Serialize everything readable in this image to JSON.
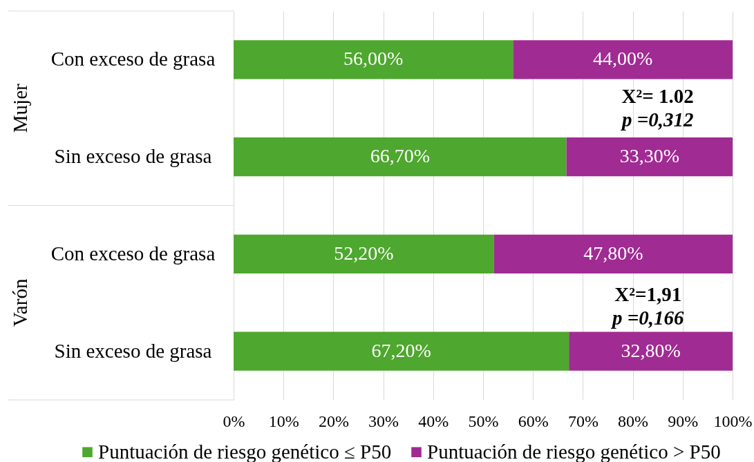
{
  "chart_data": {
    "type": "bar",
    "orientation": "horizontal",
    "stacked": true,
    "categories": [
      "Con exceso de grasa",
      "Sin exceso de grasa",
      "Con exceso de grasa",
      "Sin exceso de grasa"
    ],
    "series": [
      {
        "name": "Puntuación de riesgo genético ≤ P50",
        "color": "#4ea72e",
        "values": [
          56.0,
          66.7,
          52.2,
          67.2
        ],
        "value_labels": [
          "56,00%",
          "66,70%",
          "52,20%",
          "67,20%"
        ]
      },
      {
        "name": "Puntuación de riesgo genético > P50",
        "color": "#a02b93",
        "values": [
          44.0,
          33.3,
          47.8,
          32.8
        ],
        "value_labels": [
          "44,00%",
          "33,30%",
          "47,80%",
          "32,80%"
        ]
      }
    ],
    "xlim": [
      0,
      100
    ],
    "xticks": [
      {
        "value": 0,
        "label": "0%"
      },
      {
        "value": 10,
        "label": "10%"
      },
      {
        "value": 20,
        "label": "20%"
      },
      {
        "value": 30,
        "label": "30%"
      },
      {
        "value": 40,
        "label": "40%"
      },
      {
        "value": 50,
        "label": "50%"
      },
      {
        "value": 60,
        "label": "60%"
      },
      {
        "value": 70,
        "label": "70%"
      },
      {
        "value": 80,
        "label": "80%"
      },
      {
        "value": 90,
        "label": "90%"
      },
      {
        "value": 100,
        "label": "100%"
      }
    ],
    "annotations": [
      "Mujer",
      "Varón",
      "X²= 1.02",
      "p =0,312",
      "X²=1,91",
      "p =0,166"
    ],
    "grid": "x",
    "legend": "bottom"
  }
}
